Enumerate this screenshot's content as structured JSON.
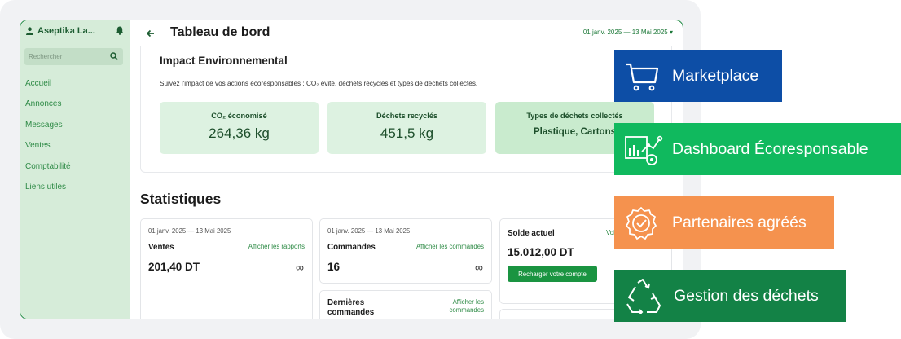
{
  "sidebar": {
    "brand": "Aseptika La...",
    "search_placeholder": "Rechercher",
    "items": [
      {
        "label": "Accueil"
      },
      {
        "label": "Annonces"
      },
      {
        "label": "Messages"
      },
      {
        "label": "Ventes"
      },
      {
        "label": "Comptabilité"
      },
      {
        "label": "Liens utiles"
      }
    ]
  },
  "header": {
    "title": "Tableau de bord",
    "date_range": "01 janv. 2025 — 13 Mai 2025 ▾"
  },
  "impact": {
    "title": "Impact Environnemental",
    "description": "Suivez l'impact de vos actions écoresponsables : CO₂ évité, déchets recyclés et types de déchets collectés.",
    "metrics": [
      {
        "label": "CO₂ économisé",
        "value": "264,36 kg"
      },
      {
        "label": "Déchets recyclés",
        "value": "451,5 kg"
      },
      {
        "label": "Types de déchets collectés",
        "value": "Plastique, Cartons"
      }
    ]
  },
  "stats": {
    "title": "Statistiques",
    "sales": {
      "date": "01 janv. 2025 — 13 Mai 2025",
      "title": "Ventes",
      "link": "Afficher les rapports",
      "value": "201,40 DT",
      "symbol": "∞"
    },
    "orders": {
      "date": "01 janv. 2025 — 13 Mai 2025",
      "title": "Commandes",
      "link": "Afficher les commandes",
      "value": "16",
      "symbol": "∞"
    },
    "balance": {
      "title": "Solde actuel",
      "link": "Voir",
      "value": "15.012,00 DT",
      "button": "Recharger votre compte"
    },
    "recent": {
      "title": "Dernières commandes",
      "link": "Afficher les commandes"
    }
  },
  "badges": [
    {
      "label": "Marketplace",
      "color": "#0d4ea6",
      "icon": "cart-icon"
    },
    {
      "label": "Dashboard Écoresponsable",
      "color": "#10b95e",
      "icon": "analytics-icon"
    },
    {
      "label": "Partenaires agréés",
      "color": "#f5924e",
      "icon": "verified-badge-icon"
    },
    {
      "label": "Gestion des déchets",
      "color": "#138246",
      "icon": "recycle-icon"
    }
  ],
  "colors": {
    "accent": "#1f8a43",
    "sidebar": "#d6ecd9",
    "metric": "#ddf2e1"
  }
}
